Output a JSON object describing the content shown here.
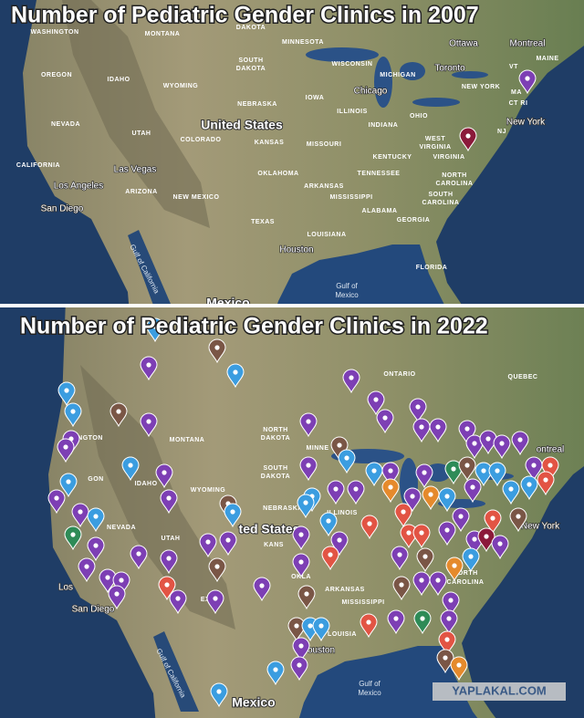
{
  "panels": [
    {
      "title": "Number of Pediatric Gender Clinics in 2007",
      "labels": [
        "WASHINGTON",
        "MONTANA",
        "DAKOTA",
        "MINNESOTA",
        "Ottawa",
        "Montreal",
        "SOUTH",
        "DAKOTA",
        "WISCONSIN",
        "OREGON",
        "IDAHO",
        "WYOMING",
        "MICHIGAN",
        "Toronto",
        "VT",
        "MAINE",
        "IOWA",
        "Chicago",
        "NEW YORK",
        "MA",
        "NEBRASKA",
        "ILLINOIS",
        "OHIO",
        "CT RI",
        "NEVADA",
        "UTAH",
        "United States",
        "COLORADO",
        "KANSAS",
        "MISSOURI",
        "INDIANA",
        "WEST",
        "VIRGINIA",
        "New York",
        "NJ",
        "KENTUCKY",
        "VIRGINIA",
        "CALIFORNIA",
        "Las Vegas",
        "OKLAHOMA",
        "TENNESSEE",
        "NORTH",
        "CAROLINA",
        "Los Angeles",
        "ARIZONA",
        "ARKANSAS",
        "NEW MEXICO",
        "MISSISSIPPI",
        "SOUTH",
        "CAROLINA",
        "San Diego",
        "ALABAMA",
        "TEXAS",
        "GEORGIA",
        "LOUISIANA",
        "Houston",
        "FLORIDA",
        "Gulf of",
        "Mexico",
        "Gulf of California",
        "Mexico"
      ]
    },
    {
      "title": "Number of Pediatric Gender Clinics in 2022",
      "labels": [
        "ONTARIO",
        "QUEBEC",
        "HINGTON",
        "MONTANA",
        "NORTH",
        "DAKOTA",
        "MINNE",
        "ontreal",
        "SOUTH",
        "DAKOTA",
        "GON",
        "IDAHO",
        "WYOMING",
        "NEBRASKA",
        "ILLINOIS",
        "NEVADA",
        "UTAH",
        "ted States",
        "KANS",
        "New York",
        "Los",
        "San Diego",
        "OKLA",
        "ARKANSAS",
        "MISSISSIPPI",
        "EXICO",
        "NORTH",
        "CAROLINA",
        "LOUISIA",
        "ouston",
        "Gulf of California",
        "Gulf of",
        "Mexico",
        "Mexico"
      ]
    }
  ],
  "watermark": "YAPLAKAL.COM"
}
